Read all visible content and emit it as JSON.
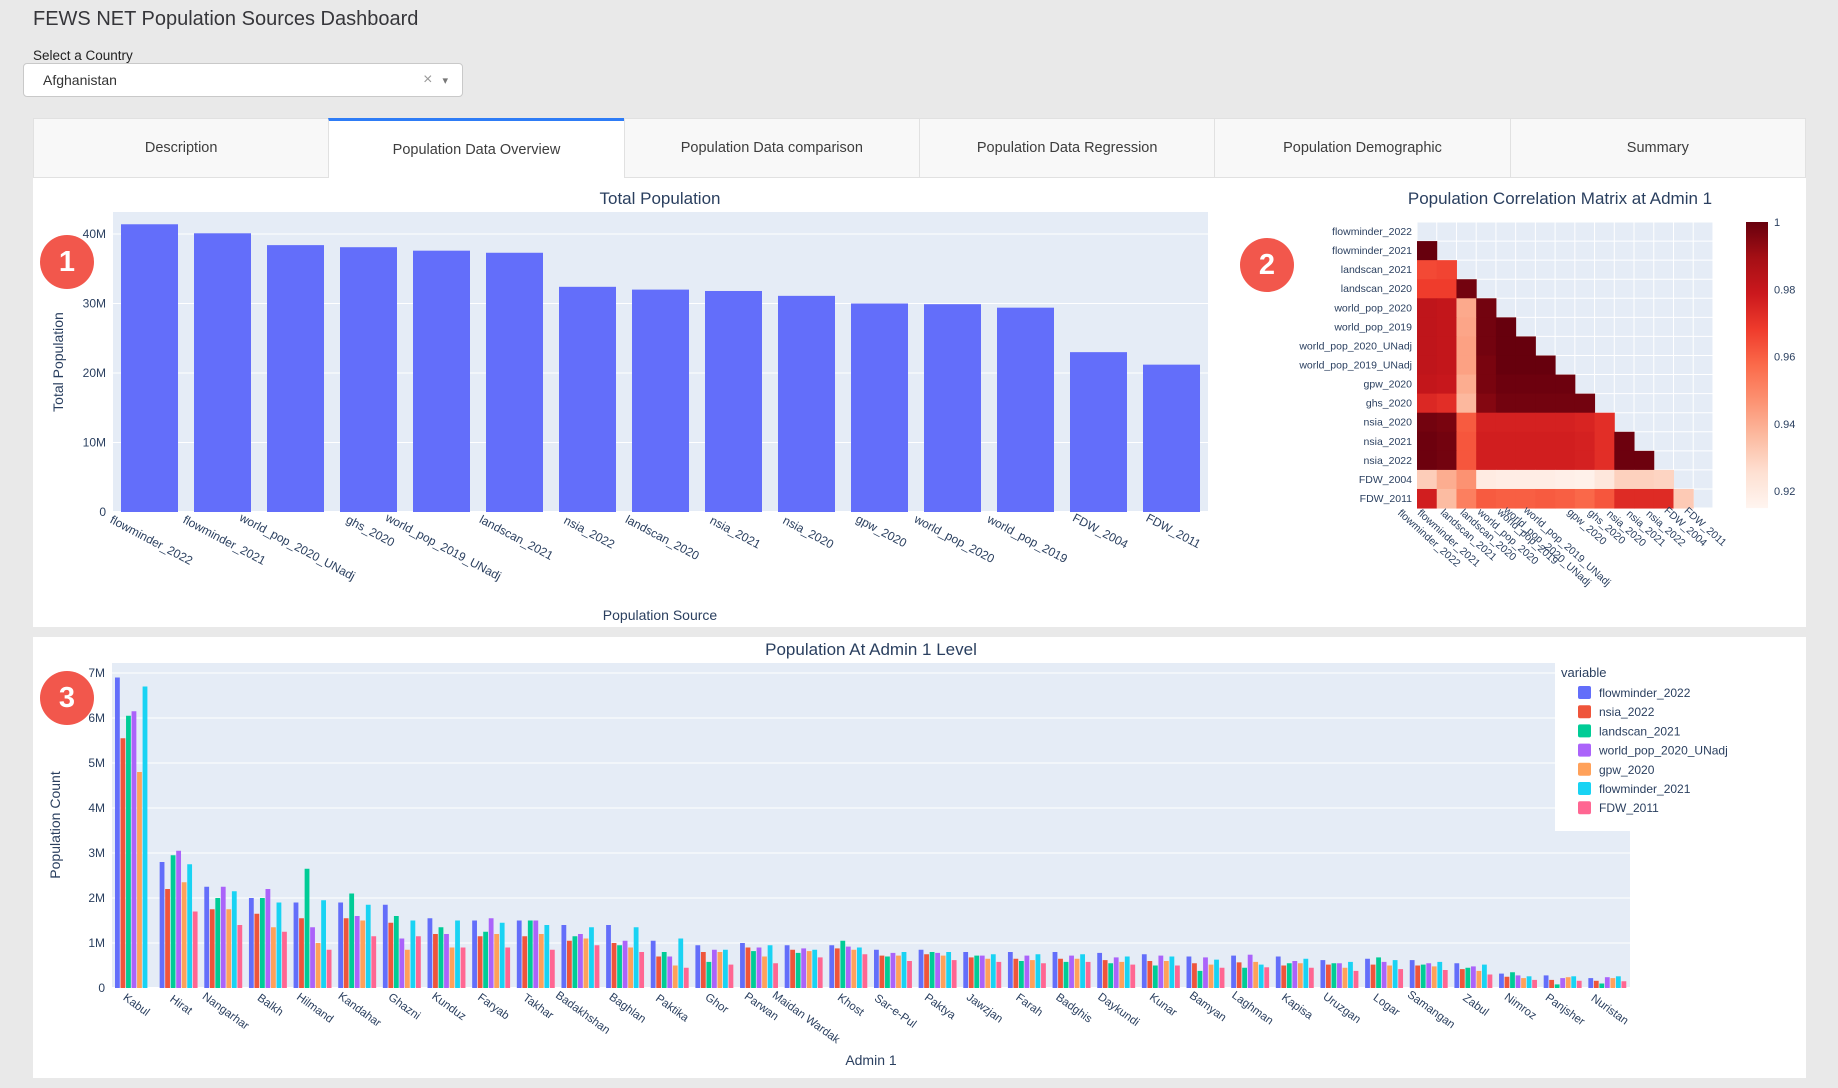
{
  "header": {
    "title": "FEWS NET Population Sources Dashboard"
  },
  "country_selector": {
    "label": "Select a Country",
    "value": "Afghanistan",
    "clear_icon": "×",
    "caret_icon": "▾"
  },
  "tabs": [
    {
      "label": "Description",
      "active": false
    },
    {
      "label": "Population Data Overview",
      "active": true
    },
    {
      "label": "Population Data comparison",
      "active": false
    },
    {
      "label": "Population Data Regression",
      "active": false
    },
    {
      "label": "Population Demographic",
      "active": false
    },
    {
      "label": "Summary",
      "active": false
    }
  ],
  "annotations": [
    {
      "label": "1"
    },
    {
      "label": "2"
    },
    {
      "label": "3"
    }
  ],
  "colors": {
    "accent_tab": "#2e7cf6",
    "badge": "#f2574c",
    "plot_background": "#e5ecf6",
    "axis_text": "#2a3f5f",
    "bar_blue": "#636EFA"
  },
  "chart_data": [
    {
      "id": "total_population",
      "type": "bar",
      "title": "Total Population",
      "xlabel": "Population Source",
      "ylabel": "Total Population",
      "bar_color": "#636EFA",
      "unit": "M",
      "yticks": [
        0,
        10,
        20,
        30,
        40
      ],
      "ylim": [
        0,
        43.2
      ],
      "categories": [
        "flowminder_2022",
        "flowminder_2021",
        "world_pop_2020_UNadj",
        "ghs_2020",
        "world_pop_2019_UNadj",
        "landscan_2021",
        "nsia_2022",
        "landscan_2020",
        "nsia_2021",
        "nsia_2020",
        "gpw_2020",
        "world_pop_2020",
        "world_pop_2019",
        "FDW_2004",
        "FDW_2011"
      ],
      "values": [
        41.4,
        40.1,
        38.4,
        38.1,
        37.6,
        37.3,
        32.4,
        32.0,
        31.8,
        31.1,
        30.0,
        29.9,
        29.4,
        23.0,
        21.2
      ]
    },
    {
      "id": "correlation_matrix",
      "type": "heatmap",
      "title": "Population Correlation Matrix at Admin 1",
      "colorscale": "Reds",
      "zmin": 0.915,
      "zmax": 1.0,
      "colorbar_ticks": [
        1,
        0.98,
        0.96,
        0.94,
        0.92
      ],
      "labels": [
        "flowminder_2022",
        "flowminder_2021",
        "landscan_2021",
        "landscan_2020",
        "world_pop_2020",
        "world_pop_2019",
        "world_pop_2020_UNadj",
        "world_pop_2019_UNadj",
        "gpw_2020",
        "ghs_2020",
        "nsia_2020",
        "nsia_2021",
        "nsia_2022",
        "FDW_2004",
        "FDW_2011"
      ],
      "lower_triangle_rows": [
        [],
        [
          1.0
        ],
        [
          0.965,
          0.966
        ],
        [
          0.968,
          0.968,
          0.998
        ],
        [
          0.982,
          0.981,
          0.941,
          0.998
        ],
        [
          0.982,
          0.981,
          0.942,
          0.998,
          1.0
        ],
        [
          0.982,
          0.981,
          0.943,
          0.998,
          1.0,
          1.0
        ],
        [
          0.982,
          0.981,
          0.943,
          0.997,
          1.0,
          1.0,
          1.0
        ],
        [
          0.981,
          0.98,
          0.94,
          0.997,
          0.999,
          0.999,
          0.999,
          0.999
        ],
        [
          0.974,
          0.972,
          0.937,
          0.995,
          0.998,
          0.998,
          0.998,
          0.998,
          0.998
        ],
        [
          0.998,
          0.997,
          0.961,
          0.976,
          0.976,
          0.976,
          0.976,
          0.976,
          0.975,
          0.972
        ],
        [
          0.999,
          0.998,
          0.962,
          0.977,
          0.977,
          0.977,
          0.977,
          0.977,
          0.976,
          0.972,
          0.999
        ],
        [
          0.999,
          0.998,
          0.962,
          0.977,
          0.977,
          0.977,
          0.977,
          0.977,
          0.976,
          0.972,
          0.999,
          0.999
        ],
        [
          0.931,
          0.94,
          0.947,
          0.92,
          0.919,
          0.919,
          0.919,
          0.918,
          0.917,
          0.922,
          0.93,
          0.93,
          0.929
        ],
        [
          0.977,
          0.936,
          0.952,
          0.961,
          0.96,
          0.96,
          0.961,
          0.96,
          0.958,
          0.962,
          0.973,
          0.973,
          0.973,
          0.932
        ]
      ]
    },
    {
      "id": "admin1_population",
      "type": "grouped_bar",
      "title": "Population At Admin 1 Level",
      "xlabel": "Admin 1",
      "ylabel": "Population Count",
      "legend_title": "variable",
      "unit": "M",
      "yticks": [
        0,
        1,
        2,
        3,
        4,
        5,
        6,
        7
      ],
      "ylim": [
        0,
        7.22
      ],
      "categories": [
        "Kabul",
        "Hirat",
        "Nangarhar",
        "Balkh",
        "Hilmand",
        "Kandahar",
        "Ghazni",
        "Kunduz",
        "Faryab",
        "Takhar",
        "Badakhshan",
        "Baghlan",
        "Paktika",
        "Ghor",
        "Parwan",
        "Maidan Wardak",
        "Khost",
        "Sar-e-Pul",
        "Paktya",
        "Jawzjan",
        "Farah",
        "Badghis",
        "Daykundi",
        "Kunar",
        "Bamyan",
        "Laghman",
        "Kapisa",
        "Uruzgan",
        "Logar",
        "Samangan",
        "Zabul",
        "Nimroz",
        "Panjsher",
        "Nuristan"
      ],
      "series": [
        {
          "name": "flowminder_2022",
          "color": "#636EFA",
          "values": [
            6.9,
            2.8,
            2.25,
            2.0,
            1.9,
            1.9,
            1.85,
            1.55,
            1.5,
            1.5,
            1.4,
            1.4,
            1.05,
            0.95,
            1.0,
            0.95,
            0.95,
            0.85,
            0.85,
            0.8,
            0.8,
            0.8,
            0.78,
            0.75,
            0.7,
            0.72,
            0.7,
            0.62,
            0.65,
            0.62,
            0.55,
            0.32,
            0.28,
            0.22
          ]
        },
        {
          "name": "nsia_2022",
          "color": "#EF553B",
          "values": [
            5.55,
            2.2,
            1.75,
            1.65,
            1.55,
            1.55,
            1.45,
            1.2,
            1.15,
            1.15,
            1.05,
            1.0,
            0.7,
            0.8,
            0.9,
            0.85,
            0.88,
            0.72,
            0.75,
            0.68,
            0.65,
            0.65,
            0.62,
            0.6,
            0.55,
            0.57,
            0.5,
            0.52,
            0.52,
            0.5,
            0.42,
            0.25,
            0.18,
            0.16
          ]
        },
        {
          "name": "landscan_2021",
          "color": "#00CC96",
          "values": [
            6.05,
            2.95,
            2.0,
            2.0,
            2.65,
            2.1,
            1.6,
            1.35,
            1.25,
            1.5,
            1.15,
            0.95,
            0.8,
            0.58,
            0.82,
            0.78,
            1.05,
            0.7,
            0.8,
            0.72,
            0.6,
            0.58,
            0.55,
            0.5,
            0.38,
            0.45,
            0.55,
            0.55,
            0.68,
            0.52,
            0.45,
            0.35,
            0.08,
            0.1
          ]
        },
        {
          "name": "world_pop_2020_UNadj",
          "color": "#AB63FA",
          "values": [
            6.15,
            3.05,
            2.25,
            2.2,
            1.35,
            1.6,
            1.1,
            1.2,
            1.55,
            1.5,
            1.2,
            1.05,
            0.7,
            0.85,
            0.9,
            0.88,
            0.92,
            0.78,
            0.78,
            0.72,
            0.72,
            0.72,
            0.68,
            0.72,
            0.68,
            0.74,
            0.6,
            0.55,
            0.58,
            0.55,
            0.48,
            0.28,
            0.22,
            0.24
          ]
        },
        {
          "name": "gpw_2020",
          "color": "#FFA15A",
          "values": [
            4.8,
            2.35,
            1.75,
            1.35,
            1.0,
            1.5,
            0.85,
            0.9,
            1.2,
            1.2,
            1.1,
            0.9,
            0.5,
            0.8,
            0.7,
            0.82,
            0.85,
            0.72,
            0.72,
            0.65,
            0.62,
            0.65,
            0.58,
            0.6,
            0.52,
            0.58,
            0.55,
            0.45,
            0.5,
            0.48,
            0.38,
            0.22,
            0.24,
            0.22
          ]
        },
        {
          "name": "flowminder_2021",
          "color": "#19D3F3",
          "values": [
            6.7,
            2.75,
            2.15,
            1.9,
            1.95,
            1.85,
            1.5,
            1.5,
            1.45,
            1.4,
            1.35,
            1.35,
            1.1,
            0.85,
            0.95,
            0.85,
            0.9,
            0.8,
            0.8,
            0.75,
            0.75,
            0.75,
            0.7,
            0.7,
            0.63,
            0.52,
            0.65,
            0.58,
            0.62,
            0.58,
            0.52,
            0.26,
            0.26,
            0.26
          ]
        },
        {
          "name": "FDW_2011",
          "color": "#FF6692",
          "values": [
            0,
            1.7,
            1.4,
            1.25,
            0.85,
            1.15,
            1.15,
            0.9,
            0.9,
            0.85,
            0.95,
            0.8,
            0.45,
            0.52,
            0.55,
            0.68,
            0.75,
            0.6,
            0.62,
            0.58,
            0.55,
            0.58,
            0.52,
            0.5,
            0.45,
            0.46,
            0.45,
            0.38,
            0.42,
            0.4,
            0.3,
            0.18,
            0.16,
            0.15
          ]
        }
      ]
    }
  ]
}
